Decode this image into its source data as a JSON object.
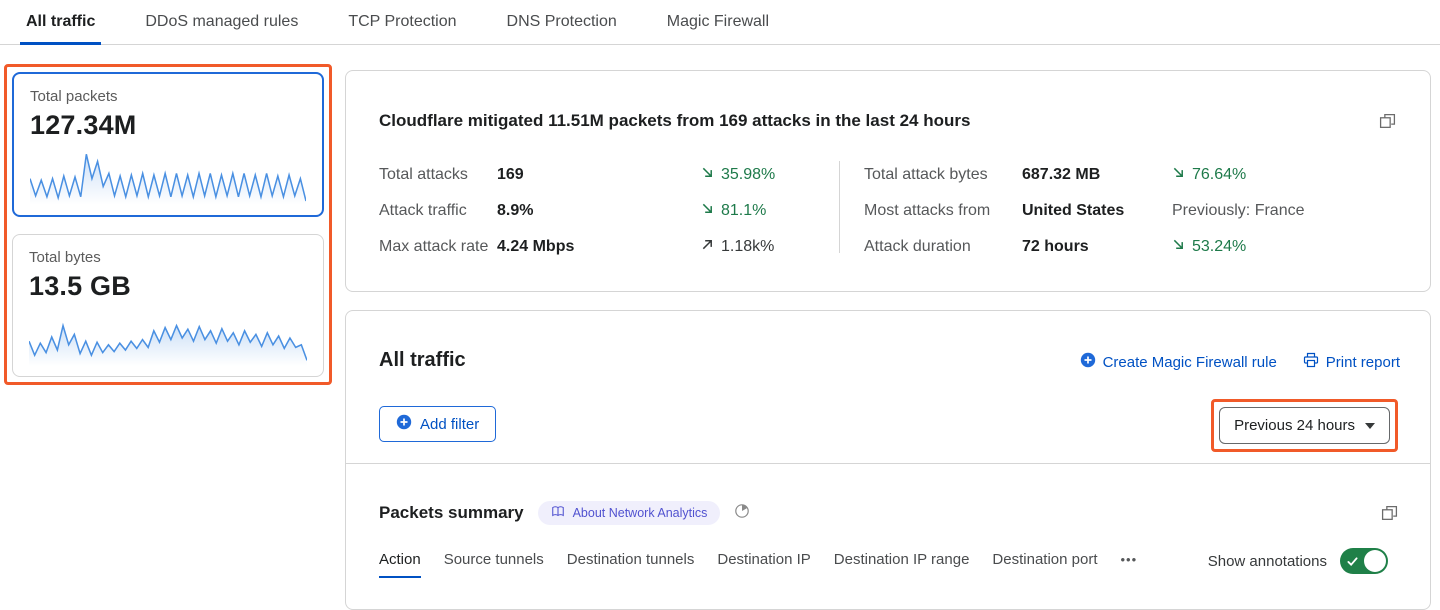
{
  "tabs": {
    "items": [
      {
        "label": "All traffic",
        "active": true
      },
      {
        "label": "DDoS managed rules",
        "active": false
      },
      {
        "label": "TCP Protection",
        "active": false
      },
      {
        "label": "DNS Protection",
        "active": false
      },
      {
        "label": "Magic Firewall",
        "active": false
      }
    ]
  },
  "summary_cards": [
    {
      "label": "Total packets",
      "value": "127.34M",
      "selected": true,
      "sparkline": [
        0.45,
        0.12,
        0.42,
        0.1,
        0.45,
        0.08,
        0.5,
        0.12,
        0.48,
        0.1,
        0.92,
        0.45,
        0.78,
        0.3,
        0.55,
        0.12,
        0.5,
        0.1,
        0.52,
        0.12,
        0.55,
        0.1,
        0.52,
        0.12,
        0.55,
        0.1,
        0.55,
        0.12,
        0.52,
        0.1,
        0.55,
        0.12,
        0.55,
        0.1,
        0.52,
        0.12,
        0.55,
        0.1,
        0.55,
        0.12,
        0.52,
        0.1,
        0.55,
        0.12,
        0.5,
        0.1,
        0.52,
        0.12,
        0.45,
        0.02
      ]
    },
    {
      "label": "Total bytes",
      "value": "13.5 GB",
      "selected": false,
      "sparkline": [
        0.42,
        0.15,
        0.38,
        0.2,
        0.5,
        0.25,
        0.72,
        0.35,
        0.55,
        0.18,
        0.42,
        0.15,
        0.4,
        0.2,
        0.35,
        0.22,
        0.38,
        0.25,
        0.42,
        0.28,
        0.45,
        0.3,
        0.62,
        0.4,
        0.68,
        0.45,
        0.72,
        0.48,
        0.65,
        0.42,
        0.7,
        0.45,
        0.62,
        0.38,
        0.66,
        0.42,
        0.58,
        0.35,
        0.62,
        0.4,
        0.55,
        0.32,
        0.58,
        0.35,
        0.52,
        0.28,
        0.48,
        0.3,
        0.35,
        0.05
      ]
    }
  ],
  "attack_summary": {
    "title": "Cloudflare mitigated 11.51M packets from 169 attacks in the last 24 hours",
    "left_stats": [
      {
        "label": "Total attacks",
        "value": "169",
        "delta": "35.98%",
        "direction": "down"
      },
      {
        "label": "Attack traffic",
        "value": "8.9%",
        "delta": "81.1%",
        "direction": "down"
      },
      {
        "label": "Max attack rate",
        "value": "4.24 Mbps",
        "delta": "1.18k%",
        "direction": "up"
      }
    ],
    "right_stats": [
      {
        "label": "Total attack bytes",
        "value": "687.32 MB",
        "delta": "76.64%",
        "direction": "down"
      },
      {
        "label": "Most attacks from",
        "value": "United States",
        "delta": "Previously: France",
        "direction": "none"
      },
      {
        "label": "Attack duration",
        "value": "72 hours",
        "delta": "53.24%",
        "direction": "down"
      }
    ]
  },
  "traffic_panel": {
    "title": "All traffic",
    "create_rule_link": "Create Magic Firewall rule",
    "print_link": "Print report",
    "add_filter_label": "Add filter",
    "time_range": "Previous 24 hours"
  },
  "packets_summary": {
    "title": "Packets summary",
    "badge": "About Network Analytics",
    "tabs": [
      {
        "label": "Action",
        "active": true
      },
      {
        "label": "Source tunnels",
        "active": false
      },
      {
        "label": "Destination tunnels",
        "active": false
      },
      {
        "label": "Destination IP",
        "active": false
      },
      {
        "label": "Destination IP range",
        "active": false
      },
      {
        "label": "Destination port",
        "active": false
      }
    ],
    "more_label": "•••",
    "show_annotations_label": "Show annotations",
    "annotations_on": true
  },
  "colors": {
    "accent_blue": "#0051c3",
    "annotation_orange": "#f15a29",
    "delta_green": "#1e7a4a",
    "toggle_green": "#1f8048",
    "sparkline_blue": "#4a90e2"
  }
}
